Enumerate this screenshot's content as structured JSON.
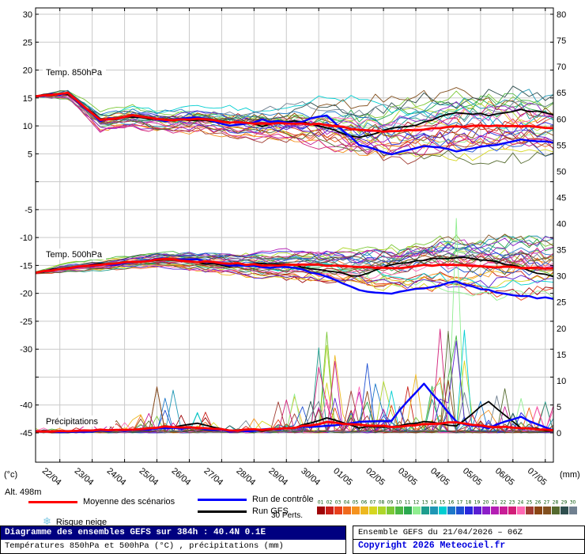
{
  "axes": {
    "left_unit": "(°c)",
    "right_unit": "(mm)",
    "left_ticks": [
      30,
      25,
      20,
      15,
      10,
      5,
      -5,
      -10,
      -15,
      -20,
      -25,
      -30,
      -40,
      -45
    ],
    "right_ticks": [
      80,
      75,
      70,
      65,
      60,
      55,
      50,
      45,
      40,
      35,
      30,
      25,
      20,
      15,
      10,
      5,
      0
    ],
    "left_range": [
      -45,
      30
    ],
    "right_range": [
      0,
      80
    ],
    "x_labels": [
      "22/04",
      "23/04",
      "24/04",
      "25/04",
      "26/04",
      "27/04",
      "28/04",
      "29/04",
      "30/04",
      "01/05",
      "02/05",
      "03/05",
      "04/05",
      "05/05",
      "06/05",
      "07/05"
    ],
    "x_first_tick_hour": 18,
    "x_tick_step_hours": 24,
    "total_hours": 384
  },
  "panels": [
    {
      "label": "Temp. 850hPa"
    },
    {
      "label": "Temp. 500hPa"
    },
    {
      "label": "Précipitations"
    }
  ],
  "chart_data": [
    {
      "type": "line",
      "title": "Temp. 850hPa",
      "axis": "left",
      "unit": "°C",
      "ylim": [
        -45,
        30
      ],
      "x_hours": [
        0,
        24,
        48,
        72,
        96,
        120,
        144,
        168,
        192,
        216,
        240,
        264,
        288,
        312,
        336,
        360,
        384
      ],
      "series": [
        {
          "name": "Moyenne des scénarios",
          "color": "#ff0000",
          "values": [
            15.3,
            15.8,
            11.0,
            11.8,
            11.0,
            11.3,
            10.6,
            10.4,
            10.5,
            10.2,
            9.3,
            9.0,
            9.4,
            9.8,
            10.0,
            10.0,
            9.6
          ]
        },
        {
          "name": "Run de contrôle",
          "color": "#0000ff",
          "values": [
            15.3,
            15.8,
            11.0,
            12.0,
            11.0,
            11.5,
            10.0,
            11.0,
            10.5,
            12.0,
            6.5,
            5.0,
            6.5,
            5.5,
            6.5,
            7.5,
            7.0
          ]
        },
        {
          "name": "Run GFS",
          "color": "#000000",
          "values": [
            15.3,
            15.8,
            11.2,
            11.5,
            11.0,
            11.0,
            10.8,
            10.0,
            11.0,
            9.5,
            8.0,
            9.5,
            10.5,
            12.5,
            12.0,
            13.0,
            12.0
          ]
        }
      ],
      "ensemble_spread": [
        0.2,
        1.0,
        1.8,
        1.8,
        2.0,
        2.2,
        2.5,
        2.8,
        3.0,
        3.8,
        4.5,
        5.0,
        5.0,
        5.2,
        5.2,
        5.2,
        5.2
      ],
      "members_count": 30,
      "seed": 101
    },
    {
      "type": "line",
      "title": "Temp. 500hPa",
      "axis": "left",
      "unit": "°C",
      "ylim": [
        -45,
        30
      ],
      "x_hours": [
        0,
        24,
        48,
        72,
        96,
        120,
        144,
        168,
        192,
        216,
        240,
        264,
        288,
        312,
        336,
        360,
        384
      ],
      "series": [
        {
          "name": "Moyenne des scénarios",
          "color": "#ff0000",
          "values": [
            -16.3,
            -15.4,
            -15.0,
            -14.4,
            -13.9,
            -14.3,
            -14.6,
            -15.0,
            -14.9,
            -15.0,
            -15.4,
            -15.5,
            -15.0,
            -15.0,
            -15.3,
            -15.4,
            -15.5
          ]
        },
        {
          "name": "Run de contrôle",
          "color": "#0000ff",
          "values": [
            -16.3,
            -15.4,
            -15.0,
            -14.4,
            -13.8,
            -14.0,
            -15.0,
            -15.2,
            -15.5,
            -17.0,
            -19.5,
            -20.0,
            -19.0,
            -18.0,
            -19.5,
            -20.5,
            -21.0
          ]
        },
        {
          "name": "Run GFS",
          "color": "#000000",
          "values": [
            -16.3,
            -15.4,
            -14.8,
            -14.4,
            -14.0,
            -14.5,
            -15.0,
            -14.5,
            -15.0,
            -16.0,
            -17.0,
            -15.0,
            -14.0,
            -13.5,
            -14.0,
            -15.5,
            -17.0
          ]
        }
      ],
      "ensemble_spread": [
        0.2,
        0.7,
        0.9,
        1.0,
        1.2,
        1.5,
        1.6,
        2.0,
        2.2,
        2.6,
        3.0,
        3.4,
        3.6,
        4.0,
        4.2,
        4.4,
        4.6
      ],
      "members_count": 30,
      "seed": 202
    },
    {
      "type": "line",
      "title": "Précipitations",
      "axis": "right",
      "unit": "mm",
      "ylim": [
        0,
        80
      ],
      "x_hours": [
        0,
        24,
        48,
        72,
        96,
        120,
        144,
        168,
        192,
        216,
        240,
        264,
        288,
        312,
        336,
        360,
        384
      ],
      "series": [
        {
          "name": "Moyenne des scénarios",
          "color": "#ff0000",
          "values": [
            0.3,
            0.3,
            0.6,
            0.6,
            1.2,
            1.0,
            0.5,
            0.6,
            1.0,
            2.0,
            1.5,
            1.2,
            1.6,
            2.0,
            1.2,
            1.0,
            0.5
          ]
        },
        {
          "name": "Run de contrôle",
          "color": "#0000ff",
          "values": [
            0.3,
            0.2,
            0.5,
            0.5,
            0.8,
            1.0,
            0.4,
            0.5,
            1.0,
            1.2,
            2.0,
            2.5,
            9.5,
            2.0,
            1.0,
            3.0,
            0.5
          ]
        },
        {
          "name": "Run GFS",
          "color": "#000000",
          "values": [
            0.3,
            0.2,
            0.5,
            0.5,
            1.0,
            2.0,
            0.4,
            0.5,
            1.0,
            3.0,
            1.0,
            1.2,
            2.0,
            1.5,
            6.0,
            1.0,
            0.4
          ]
        }
      ],
      "spike_max": [
        1,
        1,
        2,
        4,
        10,
        4,
        2,
        3,
        8,
        30,
        14,
        10,
        12,
        20,
        10,
        9,
        6
      ],
      "highlight": {
        "member_index": 11,
        "step": 52,
        "mm": 41
      },
      "members_count": 30,
      "seed": 303
    }
  ],
  "legend": {
    "mean": {
      "label": "Moyenne des scénarios",
      "color": "#ff0000"
    },
    "control": {
      "label": "Run de contrôle",
      "color": "#0000ff"
    },
    "gfs": {
      "label": "Run GFS",
      "color": "#000000"
    },
    "perts_label": "30 Perts.",
    "members": [
      {
        "num": "01",
        "color": "#9e0508"
      },
      {
        "num": "02",
        "color": "#c81e17"
      },
      {
        "num": "03",
        "color": "#e8401c"
      },
      {
        "num": "04",
        "color": "#f06a1d"
      },
      {
        "num": "05",
        "color": "#f5931e"
      },
      {
        "num": "06",
        "color": "#edb81f"
      },
      {
        "num": "07",
        "color": "#d6d620"
      },
      {
        "num": "08",
        "color": "#aed62a"
      },
      {
        "num": "09",
        "color": "#7cc837"
      },
      {
        "num": "10",
        "color": "#4bb843"
      },
      {
        "num": "11",
        "color": "#2aa84f"
      },
      {
        "num": "12",
        "color": "#90ee90"
      },
      {
        "num": "13",
        "color": "#1e9e8e"
      },
      {
        "num": "14",
        "color": "#1e96b4"
      },
      {
        "num": "15",
        "color": "#00ced1"
      },
      {
        "num": "16",
        "color": "#1e78c8"
      },
      {
        "num": "17",
        "color": "#1e50d2"
      },
      {
        "num": "18",
        "color": "#2828dc"
      },
      {
        "num": "19",
        "color": "#5a1ed2"
      },
      {
        "num": "20",
        "color": "#8c1ec8"
      },
      {
        "num": "21",
        "color": "#b41eb4"
      },
      {
        "num": "22",
        "color": "#c81e96"
      },
      {
        "num": "23",
        "color": "#d21e78"
      },
      {
        "num": "24",
        "color": "#ff69b4"
      },
      {
        "num": "25",
        "color": "#a03c32"
      },
      {
        "num": "26",
        "color": "#8b4513"
      },
      {
        "num": "27",
        "color": "#82501e"
      },
      {
        "num": "28",
        "color": "#556b2f"
      },
      {
        "num": "29",
        "color": "#2f4f4f"
      },
      {
        "num": "30",
        "color": "#708090"
      }
    ],
    "snow": {
      "icon": "❄",
      "label": "Risque neige"
    }
  },
  "alt_label": "Alt. 498m",
  "footer": {
    "title": "Diagramme des ensembles GEFS sur 384h : 40.4N 0.1E",
    "subtitle": "Températures 850hPa et 500hPa (°C) , précipitations (mm)",
    "run_info": "Ensemble GEFS du 21/04/2026 – 06Z",
    "copyright": "Copyright 2026 Meteociel.fr"
  }
}
